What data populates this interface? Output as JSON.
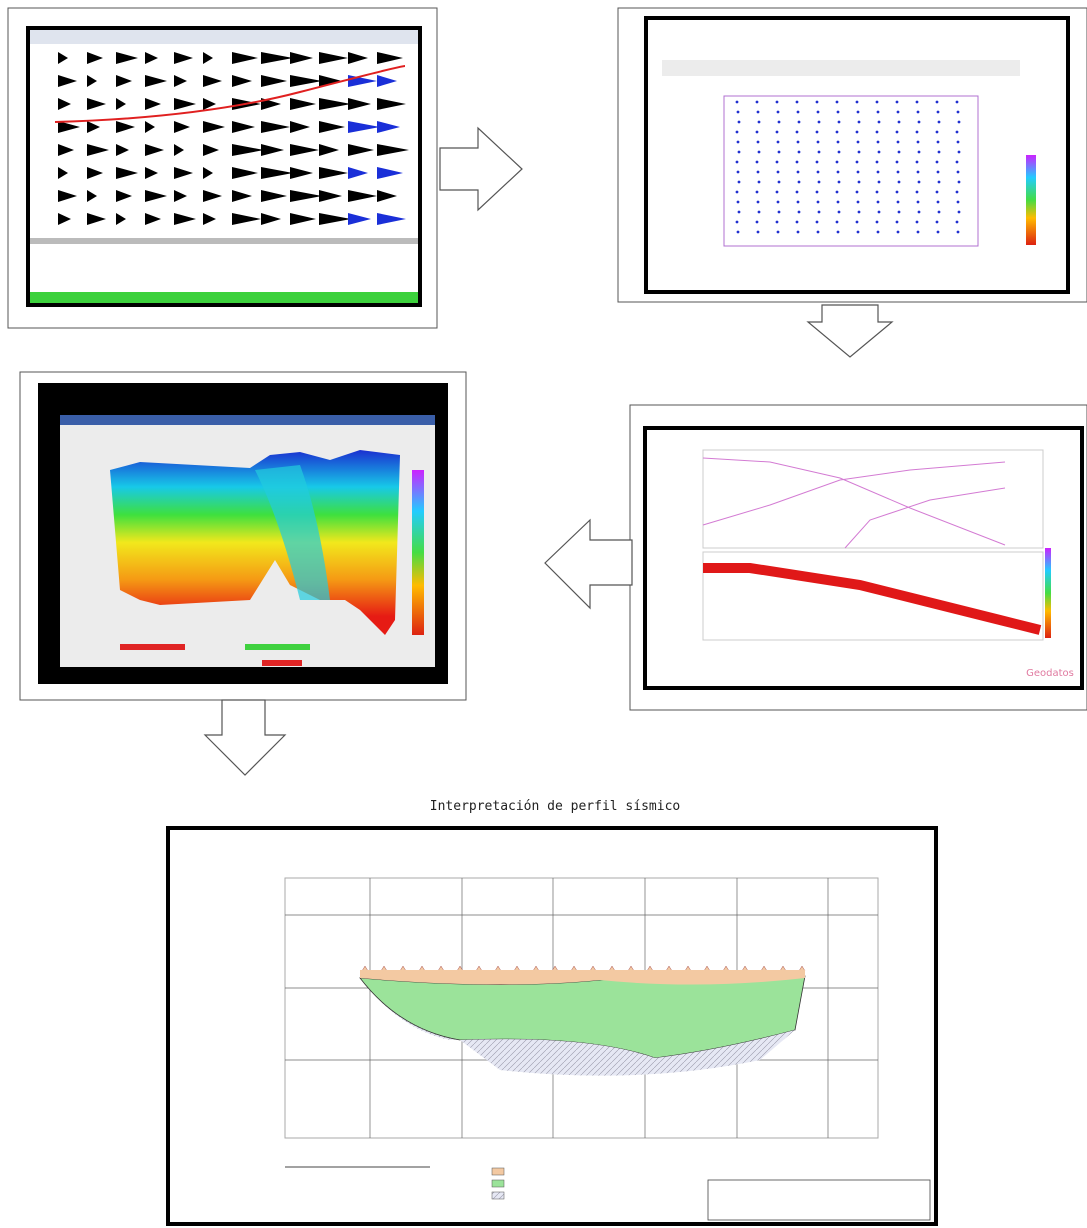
{
  "caption": "Interpretación de perfil sísmico",
  "panels": [
    {
      "watermark": "Geodatos"
    }
  ]
}
